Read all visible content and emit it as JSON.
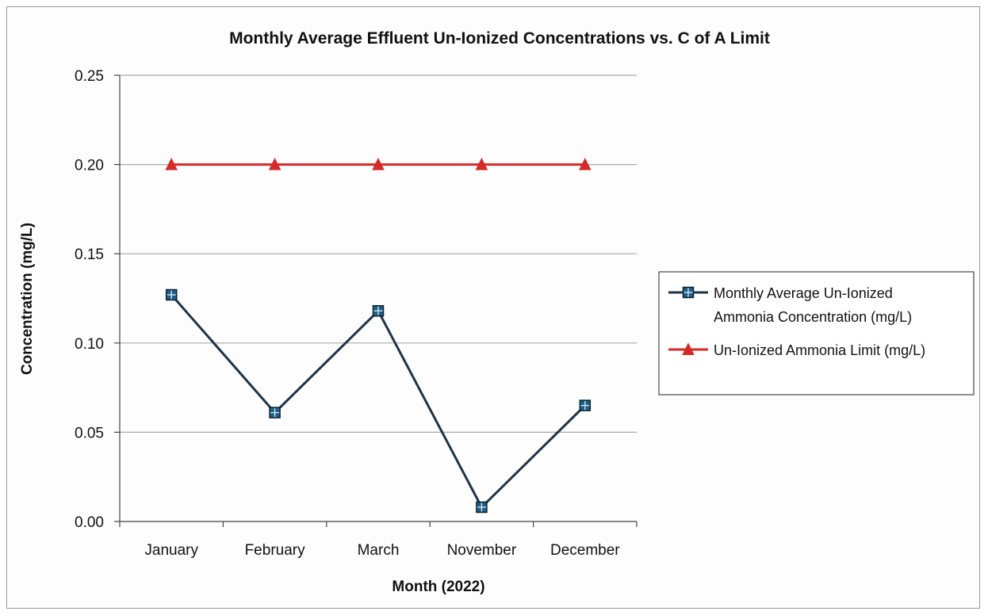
{
  "chart_data": {
    "type": "line",
    "title": "Monthly Average Effluent Un-Ionized Concentrations vs. C of A Limit",
    "xlabel": "Month (2022)",
    "ylabel": "Concentration (mg/L)",
    "categories": [
      "January",
      "February",
      "March",
      "November",
      "December"
    ],
    "ylim": [
      0,
      0.25
    ],
    "yticks": [
      "0.00",
      "0.05",
      "0.10",
      "0.15",
      "0.20",
      "0.25"
    ],
    "grid": true,
    "legend_position": "right",
    "series": [
      {
        "name_lines": [
          "Monthly Average Un-Ionized",
          "Ammonia Concentration (mg/L)"
        ],
        "values": [
          0.127,
          0.061,
          0.118,
          0.008,
          0.065
        ],
        "color": "#1f3446",
        "marker": "square"
      },
      {
        "name_lines": [
          "Un-Ionized Ammonia Limit (mg/L)"
        ],
        "values": [
          0.2,
          0.2,
          0.2,
          0.2,
          0.2
        ],
        "color": "#d42a2a",
        "marker": "triangle"
      }
    ]
  }
}
